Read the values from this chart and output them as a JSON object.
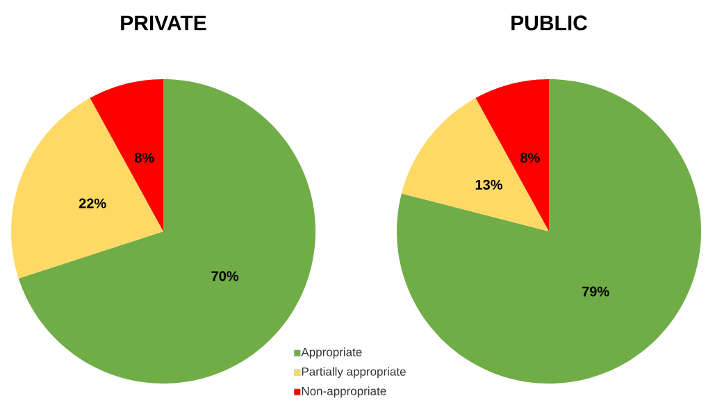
{
  "chart_data": [
    {
      "type": "pie",
      "title": "PRIVATE",
      "categories": [
        "Appropriate",
        "Partially appropriate",
        "Non-appropriate"
      ],
      "values": [
        70,
        22,
        8
      ],
      "colors": [
        "#70ad47",
        "#ffd966",
        "#ff0000"
      ],
      "value_labels": [
        "70%",
        "22%",
        "8%"
      ],
      "legend": "bottom right"
    },
    {
      "type": "pie",
      "title": "PUBLIC",
      "categories": [
        null,
        null,
        null
      ],
      "values": [
        79,
        13,
        8
      ],
      "colors": [
        "#70ad47",
        "#ffd966",
        "#ff0000"
      ],
      "value_labels": [
        "79%",
        "13%",
        "8%"
      ]
    }
  ]
}
